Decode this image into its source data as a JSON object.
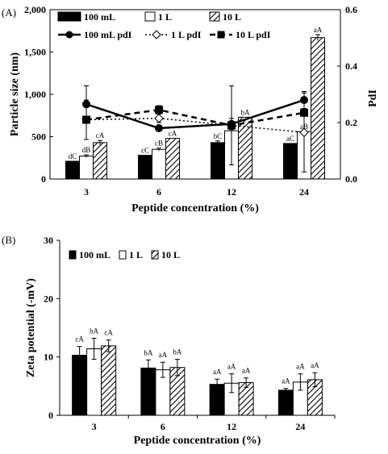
{
  "chart_data": [
    {
      "panel_label": "(A)",
      "type": "bar",
      "xlabel": "Peptide concentration (%)",
      "ylabel": "Particle size (nm)",
      "ylabel_right": "PdI",
      "categories": [
        "3",
        "6",
        "12",
        "24"
      ],
      "ylim": [
        0,
        2000
      ],
      "yticks": [
        "0",
        "500",
        "1,000",
        "1,500",
        "2,000"
      ],
      "ylim_right": [
        0,
        0.6
      ],
      "yticks_right": [
        "0.0",
        "0.2",
        "0.4",
        "0.6"
      ],
      "legend_position": "top-left",
      "bar_series": [
        {
          "name": "100 mL",
          "fill": "solid",
          "values": [
            210,
            280,
            430,
            420
          ],
          "errors": [
            0,
            0,
            20,
            0
          ],
          "letters": [
            "dC",
            "cC",
            "bC",
            "aC"
          ]
        },
        {
          "name": "1 L",
          "fill": "open",
          "values": [
            270,
            350,
            570,
            560
          ],
          "errors": [
            15,
            15,
            0,
            0
          ],
          "letters": [
            "dB",
            "cB",
            "bB",
            "aB"
          ]
        },
        {
          "name": "10 L",
          "fill": "hatched",
          "values": [
            430,
            480,
            730,
            1670
          ],
          "errors": [
            25,
            0,
            0,
            35
          ],
          "letters": [
            "cA",
            "cA",
            "bA",
            "aA"
          ]
        }
      ],
      "line_series": [
        {
          "name": "100 mL pdI",
          "style": "solid",
          "marker": "circle",
          "values": [
            0.265,
            0.18,
            0.195,
            0.28
          ],
          "errors": [
            0.065,
            0,
            0.02,
            0.03
          ]
        },
        {
          "name": "1 L pdI",
          "style": "dotted",
          "marker": "open-diamond",
          "values": [
            0.21,
            0.215,
            0.19,
            0.165
          ],
          "errors": [
            0,
            0.015,
            0.14,
            0.14
          ]
        },
        {
          "name": "10 L  pdI",
          "style": "dashed",
          "marker": "square",
          "values": [
            0.21,
            0.245,
            0.19,
            0.235
          ],
          "errors": [
            0.07,
            0.015,
            0,
            0
          ]
        }
      ],
      "grid": false
    },
    {
      "panel_label": "(B)",
      "type": "bar",
      "xlabel": "Peptide concentration (%)",
      "ylabel": "Zeta potential (-mV)",
      "categories": [
        "3",
        "6",
        "12",
        "24"
      ],
      "ylim": [
        0,
        30
      ],
      "yticks": [
        "0",
        "10",
        "20",
        "30"
      ],
      "legend_position": "top-left",
      "series": [
        {
          "name": "100 mL",
          "fill": "solid",
          "values": [
            10.3,
            8.1,
            5.3,
            4.3
          ],
          "errors": [
            1.5,
            1.4,
            0.9,
            0.3
          ],
          "letters": [
            "cA",
            "bA",
            "aA",
            "aA"
          ]
        },
        {
          "name": "1 L",
          "fill": "open",
          "values": [
            11.4,
            7.8,
            5.5,
            5.7
          ],
          "errors": [
            1.8,
            1.3,
            1.6,
            1.4
          ],
          "letters": [
            "bA",
            "aA",
            "aA",
            "aA"
          ]
        },
        {
          "name": "10 L",
          "fill": "hatched",
          "values": [
            11.9,
            8.2,
            5.6,
            6.1
          ],
          "errors": [
            1.0,
            1.4,
            0.8,
            1.2
          ],
          "letters": [
            "cA",
            "bA",
            "aA",
            "aA"
          ]
        }
      ],
      "grid": false
    }
  ]
}
